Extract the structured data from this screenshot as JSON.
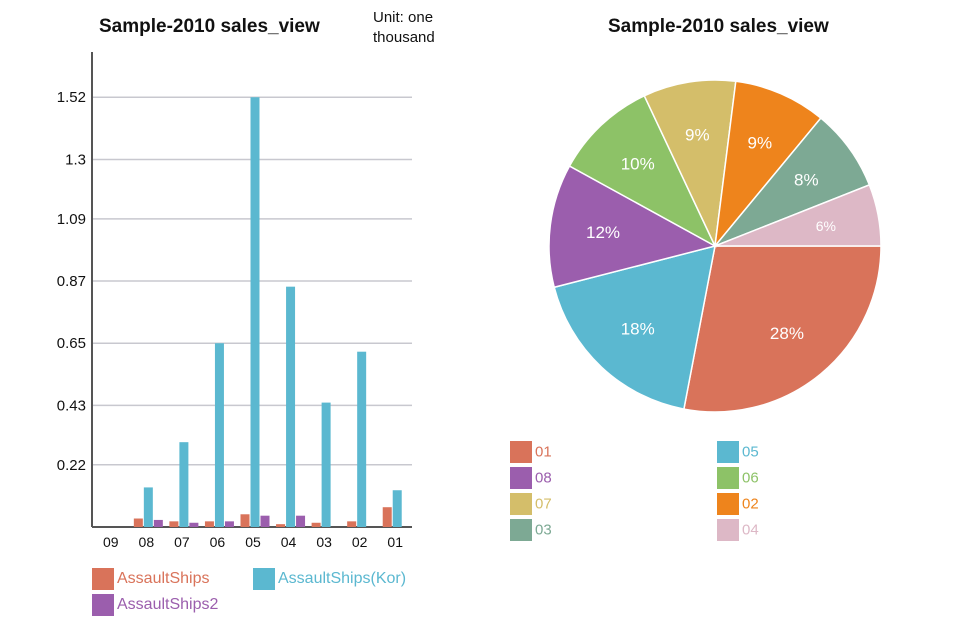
{
  "bar_chart": {
    "title": "Sample-2010 sales_view",
    "unit_note": "Unit: one thousand"
  },
  "pie_chart": {
    "title": "Sample-2010 sales_view"
  },
  "chart_data": [
    {
      "type": "bar",
      "title": "Sample-2010 sales_view",
      "annotation": "Unit: one thousand",
      "categories": [
        "09",
        "08",
        "07",
        "06",
        "05",
        "04",
        "03",
        "02",
        "01"
      ],
      "yticks": [
        "0.22",
        "0.43",
        "0.65",
        "0.87",
        "1.09",
        "1.3",
        "1.52"
      ],
      "ylim": [
        0,
        1.68
      ],
      "grid": true,
      "legend": "bottom",
      "series": [
        {
          "name": "AssaultShips",
          "color": "#D9735A",
          "values": [
            0,
            0.03,
            0.02,
            0.02,
            0.045,
            0.01,
            0.015,
            0.02,
            0.07
          ]
        },
        {
          "name": "AssaultShips(Kor)",
          "color": "#5BB8D0",
          "values": [
            0,
            0.14,
            0.3,
            0.65,
            1.52,
            0.85,
            0.44,
            0.62,
            0.13
          ]
        },
        {
          "name": "AssaultShips2",
          "color": "#9B5EAD",
          "values": [
            0,
            0.025,
            0.015,
            0.02,
            0.04,
            0.04,
            0,
            0,
            0
          ]
        }
      ]
    },
    {
      "type": "pie",
      "title": "Sample-2010 sales_view",
      "legend": "bottom",
      "slices": [
        {
          "label": "01",
          "value": 28,
          "text": "28%",
          "color": "#D9735A"
        },
        {
          "label": "05",
          "value": 18,
          "text": "18%",
          "color": "#5BB8D0"
        },
        {
          "label": "08",
          "value": 12,
          "text": "12%",
          "color": "#9B5EAD"
        },
        {
          "label": "06",
          "value": 10,
          "text": "10%",
          "color": "#8DC267"
        },
        {
          "label": "07",
          "value": 9,
          "text": "9%",
          "color": "#D4BE6A"
        },
        {
          "label": "02",
          "value": 9,
          "text": "9%",
          "color": "#EE841C"
        },
        {
          "label": "03",
          "value": 8,
          "text": "8%",
          "color": "#7DA994"
        },
        {
          "label": "04",
          "value": 6,
          "text": "6%",
          "color": "#DDB8C6"
        }
      ],
      "legend_order": [
        "01",
        "05",
        "08",
        "06",
        "07",
        "02",
        "03",
        "04"
      ]
    }
  ]
}
